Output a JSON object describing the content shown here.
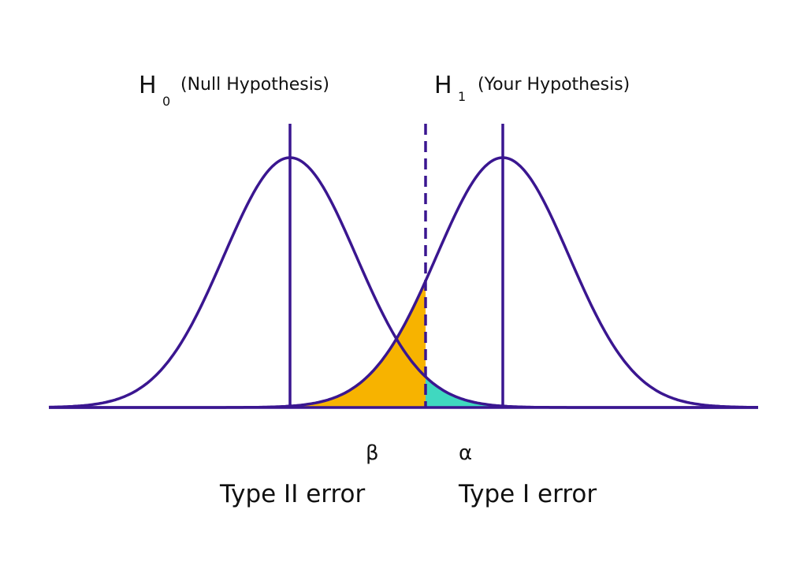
{
  "labels": {
    "h0": {
      "symbol": "H",
      "subscript": "0",
      "text": "(Null Hypothesis)"
    },
    "h1": {
      "symbol": "H",
      "subscript": "1",
      "text": "(Your Hypothesis)"
    },
    "beta": {
      "symbol": "β",
      "text": "Type II error"
    },
    "alpha": {
      "symbol": "α",
      "text": "Type I error"
    }
  }
}
